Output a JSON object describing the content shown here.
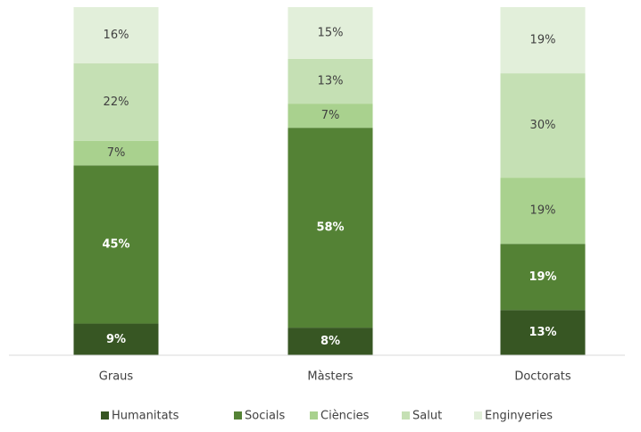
{
  "chart_data": {
    "type": "bar",
    "stacking": "percent",
    "categories": [
      "Graus",
      "Màsters",
      "Doctorats"
    ],
    "series": [
      {
        "name": "Humanitats",
        "color": "#375623",
        "values": [
          9,
          8,
          13
        ],
        "value_labels": [
          "9%",
          "8%",
          "13%"
        ]
      },
      {
        "name": "Socials",
        "color": "#548235",
        "values": [
          45,
          58,
          19
        ],
        "value_labels": [
          "45%",
          "58%",
          "19%"
        ]
      },
      {
        "name": "Ciències",
        "color": "#a9d18e",
        "values": [
          7,
          7,
          19
        ],
        "value_labels": [
          "7%",
          "7%",
          "19%"
        ]
      },
      {
        "name": "Salut",
        "color": "#c5e0b4",
        "values": [
          22,
          13,
          30
        ],
        "value_labels": [
          "22%",
          "13%",
          "30%"
        ]
      },
      {
        "name": "Enginyeries",
        "color": "#e2efda",
        "values": [
          16,
          15,
          19
        ],
        "value_labels": [
          "16%",
          "15%",
          "19%"
        ]
      }
    ],
    "legend": "bottom"
  }
}
